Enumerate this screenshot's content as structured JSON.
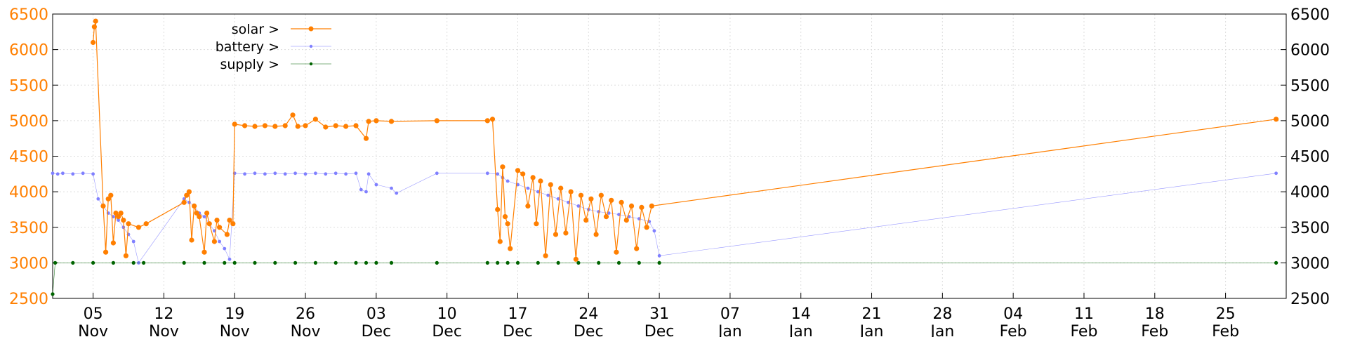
{
  "colors": {
    "solar": "#ff7f00",
    "battery": "#8080ff",
    "supply": "#006400",
    "grid": "#dddddd",
    "left_axis": "#ff7f00"
  },
  "chart_data": {
    "type": "line",
    "title": "",
    "xlabel": "",
    "ylabel": "",
    "ylim": [
      2500,
      6500
    ],
    "xlim": [
      "2023-11-01",
      "2024-03-02"
    ],
    "y_ticks": [
      "2500",
      "3000",
      "3500",
      "4000",
      "4500",
      "5000",
      "5500",
      "6000",
      "6500"
    ],
    "x_ticks": [
      {
        "day": "05",
        "month": "Nov",
        "date": "2023-11-05"
      },
      {
        "day": "12",
        "month": "Nov",
        "date": "2023-11-12"
      },
      {
        "day": "19",
        "month": "Nov",
        "date": "2023-11-19"
      },
      {
        "day": "26",
        "month": "Nov",
        "date": "2023-11-26"
      },
      {
        "day": "03",
        "month": "Dec",
        "date": "2023-12-03"
      },
      {
        "day": "10",
        "month": "Dec",
        "date": "2023-12-10"
      },
      {
        "day": "17",
        "month": "Dec",
        "date": "2023-12-17"
      },
      {
        "day": "24",
        "month": "Dec",
        "date": "2023-12-24"
      },
      {
        "day": "31",
        "month": "Dec",
        "date": "2023-12-31"
      },
      {
        "day": "07",
        "month": "Jan",
        "date": "2024-01-07"
      },
      {
        "day": "14",
        "month": "Jan",
        "date": "2024-01-14"
      },
      {
        "day": "21",
        "month": "Jan",
        "date": "2024-01-21"
      },
      {
        "day": "28",
        "month": "Jan",
        "date": "2024-01-28"
      },
      {
        "day": "04",
        "month": "Feb",
        "date": "2024-02-04"
      },
      {
        "day": "11",
        "month": "Feb",
        "date": "2024-02-11"
      },
      {
        "day": "18",
        "month": "Feb",
        "date": "2024-02-18"
      },
      {
        "day": "25",
        "month": "Feb",
        "date": "2024-02-25"
      }
    ],
    "grid": true,
    "legend_position": "top-left",
    "series": [
      {
        "name": "solar >",
        "color": "#ff7f00",
        "points": [
          [
            "2023-11-05 00:00",
            6100
          ],
          [
            "2023-11-05 03:00",
            6320
          ],
          [
            "2023-11-05 06:00",
            6400
          ],
          [
            "2023-11-06 00:00",
            3800
          ],
          [
            "2023-11-06 06:00",
            3150
          ],
          [
            "2023-11-06 12:00",
            3900
          ],
          [
            "2023-11-06 18:00",
            3950
          ],
          [
            "2023-11-07 00:00",
            3280
          ],
          [
            "2023-11-07 06:00",
            3700
          ],
          [
            "2023-11-07 12:00",
            3650
          ],
          [
            "2023-11-07 18:00",
            3700
          ],
          [
            "2023-11-08 00:00",
            3600
          ],
          [
            "2023-11-08 06:00",
            3100
          ],
          [
            "2023-11-08 12:00",
            3550
          ],
          [
            "2023-11-09 12:00",
            3500
          ],
          [
            "2023-11-10 06:00",
            3550
          ],
          [
            "2023-11-14 00:00",
            3850
          ],
          [
            "2023-11-14 06:00",
            3950
          ],
          [
            "2023-11-14 12:00",
            4000
          ],
          [
            "2023-11-14 18:00",
            3320
          ],
          [
            "2023-11-15 00:00",
            3800
          ],
          [
            "2023-11-15 06:00",
            3700
          ],
          [
            "2023-11-15 12:00",
            3650
          ],
          [
            "2023-11-16 00:00",
            3150
          ],
          [
            "2023-11-16 06:00",
            3700
          ],
          [
            "2023-11-16 12:00",
            3550
          ],
          [
            "2023-11-17 00:00",
            3300
          ],
          [
            "2023-11-17 06:00",
            3600
          ],
          [
            "2023-11-17 12:00",
            3500
          ],
          [
            "2023-11-18 06:00",
            3400
          ],
          [
            "2023-11-18 12:00",
            3600
          ],
          [
            "2023-11-18 20:00",
            3550
          ],
          [
            "2023-11-19 00:00",
            4950
          ],
          [
            "2023-11-20 00:00",
            4930
          ],
          [
            "2023-11-21 00:00",
            4920
          ],
          [
            "2023-11-22 00:00",
            4930
          ],
          [
            "2023-11-23 00:00",
            4920
          ],
          [
            "2023-11-24 00:00",
            4930
          ],
          [
            "2023-11-24 18:00",
            5080
          ],
          [
            "2023-11-25 06:00",
            4920
          ],
          [
            "2023-11-26 00:00",
            4930
          ],
          [
            "2023-11-27 00:00",
            5020
          ],
          [
            "2023-11-28 00:00",
            4910
          ],
          [
            "2023-11-29 00:00",
            4930
          ],
          [
            "2023-11-30 00:00",
            4920
          ],
          [
            "2023-12-01 00:00",
            4930
          ],
          [
            "2023-12-02 00:00",
            4750
          ],
          [
            "2023-12-02 06:00",
            4990
          ],
          [
            "2023-12-03 00:00",
            5000
          ],
          [
            "2023-12-04 12:00",
            4990
          ],
          [
            "2023-12-09 00:00",
            5000
          ],
          [
            "2023-12-14 00:00",
            5000
          ],
          [
            "2023-12-14 12:00",
            5020
          ],
          [
            "2023-12-15 00:00",
            3750
          ],
          [
            "2023-12-15 06:00",
            3300
          ],
          [
            "2023-12-15 12:00",
            4350
          ],
          [
            "2023-12-15 18:00",
            3650
          ],
          [
            "2023-12-16 00:00",
            3550
          ],
          [
            "2023-12-16 06:00",
            3200
          ],
          [
            "2023-12-17 00:00",
            4300
          ],
          [
            "2023-12-17 12:00",
            4250
          ],
          [
            "2023-12-18 00:00",
            3800
          ],
          [
            "2023-12-18 12:00",
            4200
          ],
          [
            "2023-12-18 20:00",
            3550
          ],
          [
            "2023-12-19 06:00",
            4150
          ],
          [
            "2023-12-19 18:00",
            3100
          ],
          [
            "2023-12-20 06:00",
            4100
          ],
          [
            "2023-12-20 18:00",
            3400
          ],
          [
            "2023-12-21 06:00",
            4050
          ],
          [
            "2023-12-21 18:00",
            3420
          ],
          [
            "2023-12-22 06:00",
            4000
          ],
          [
            "2023-12-22 18:00",
            3050
          ],
          [
            "2023-12-23 06:00",
            3950
          ],
          [
            "2023-12-23 18:00",
            3600
          ],
          [
            "2023-12-24 06:00",
            3900
          ],
          [
            "2023-12-24 18:00",
            3400
          ],
          [
            "2023-12-25 06:00",
            3950
          ],
          [
            "2023-12-25 18:00",
            3650
          ],
          [
            "2023-12-26 06:00",
            3880
          ],
          [
            "2023-12-26 18:00",
            3150
          ],
          [
            "2023-12-27 06:00",
            3850
          ],
          [
            "2023-12-27 18:00",
            3600
          ],
          [
            "2023-12-28 06:00",
            3800
          ],
          [
            "2023-12-28 18:00",
            3200
          ],
          [
            "2023-12-29 06:00",
            3780
          ],
          [
            "2023-12-29 18:00",
            3500
          ],
          [
            "2023-12-30 06:00",
            3800
          ],
          [
            "2024-03-01 00:00",
            5020
          ]
        ]
      },
      {
        "name": "battery >",
        "color": "#8080ff",
        "points": [
          [
            "2023-11-01 00:00",
            4260
          ],
          [
            "2023-11-01 12:00",
            4250
          ],
          [
            "2023-11-02 00:00",
            4260
          ],
          [
            "2023-11-03 00:00",
            4250
          ],
          [
            "2023-11-04 00:00",
            4260
          ],
          [
            "2023-11-05 00:00",
            4250
          ],
          [
            "2023-11-05 12:00",
            3900
          ],
          [
            "2023-11-06 00:00",
            3800
          ],
          [
            "2023-11-06 12:00",
            3700
          ],
          [
            "2023-11-07 00:00",
            3650
          ],
          [
            "2023-11-07 12:00",
            3600
          ],
          [
            "2023-11-08 00:00",
            3500
          ],
          [
            "2023-11-08 12:00",
            3400
          ],
          [
            "2023-11-09 00:00",
            3300
          ],
          [
            "2023-11-09 12:00",
            3000
          ],
          [
            "2023-11-14 00:00",
            3900
          ],
          [
            "2023-11-14 12:00",
            3850
          ],
          [
            "2023-11-15 00:00",
            3800
          ],
          [
            "2023-11-15 12:00",
            3700
          ],
          [
            "2023-11-16 00:00",
            3650
          ],
          [
            "2023-11-16 12:00",
            3550
          ],
          [
            "2023-11-17 00:00",
            3450
          ],
          [
            "2023-11-17 12:00",
            3300
          ],
          [
            "2023-11-18 00:00",
            3200
          ],
          [
            "2023-11-18 12:00",
            3050
          ],
          [
            "2023-11-19 00:00",
            4260
          ],
          [
            "2023-11-20 00:00",
            4250
          ],
          [
            "2023-11-21 00:00",
            4260
          ],
          [
            "2023-11-22 00:00",
            4250
          ],
          [
            "2023-11-23 00:00",
            4260
          ],
          [
            "2023-11-24 00:00",
            4250
          ],
          [
            "2023-11-25 00:00",
            4260
          ],
          [
            "2023-11-26 00:00",
            4250
          ],
          [
            "2023-11-27 00:00",
            4260
          ],
          [
            "2023-11-28 00:00",
            4250
          ],
          [
            "2023-11-29 00:00",
            4260
          ],
          [
            "2023-11-30 00:00",
            4250
          ],
          [
            "2023-12-01 00:00",
            4260
          ],
          [
            "2023-12-01 12:00",
            4030
          ],
          [
            "2023-12-02 00:00",
            4000
          ],
          [
            "2023-12-02 06:00",
            4250
          ],
          [
            "2023-12-03 00:00",
            4100
          ],
          [
            "2023-12-04 12:00",
            4050
          ],
          [
            "2023-12-05 00:00",
            3980
          ],
          [
            "2023-12-09 00:00",
            4260
          ],
          [
            "2023-12-14 00:00",
            4260
          ],
          [
            "2023-12-15 00:00",
            4250
          ],
          [
            "2023-12-15 12:00",
            4200
          ],
          [
            "2023-12-16 00:00",
            4150
          ],
          [
            "2023-12-17 00:00",
            4100
          ],
          [
            "2023-12-18 00:00",
            4050
          ],
          [
            "2023-12-19 00:00",
            4000
          ],
          [
            "2023-12-20 00:00",
            3950
          ],
          [
            "2023-12-21 00:00",
            3900
          ],
          [
            "2023-12-22 00:00",
            3850
          ],
          [
            "2023-12-23 00:00",
            3800
          ],
          [
            "2023-12-24 00:00",
            3750
          ],
          [
            "2023-12-25 00:00",
            3720
          ],
          [
            "2023-12-26 00:00",
            3700
          ],
          [
            "2023-12-27 00:00",
            3680
          ],
          [
            "2023-12-28 00:00",
            3650
          ],
          [
            "2023-12-29 00:00",
            3620
          ],
          [
            "2023-12-30 00:00",
            3580
          ],
          [
            "2023-12-30 12:00",
            3450
          ],
          [
            "2023-12-31 00:00",
            3100
          ],
          [
            "2024-03-01 00:00",
            4260
          ]
        ]
      },
      {
        "name": "supply >",
        "color": "#006400",
        "points": [
          [
            "2023-11-01 00:00",
            2560
          ],
          [
            "2023-11-01 06:00",
            3000
          ],
          [
            "2023-11-03 00:00",
            3000
          ],
          [
            "2023-11-05 00:00",
            3000
          ],
          [
            "2023-11-07 00:00",
            3000
          ],
          [
            "2023-11-09 00:00",
            3000
          ],
          [
            "2023-11-10 00:00",
            3000
          ],
          [
            "2023-11-14 00:00",
            3000
          ],
          [
            "2023-11-16 00:00",
            3000
          ],
          [
            "2023-11-18 00:00",
            3000
          ],
          [
            "2023-11-19 00:00",
            3000
          ],
          [
            "2023-11-21 00:00",
            3000
          ],
          [
            "2023-11-23 00:00",
            3000
          ],
          [
            "2023-11-25 00:00",
            3000
          ],
          [
            "2023-11-27 00:00",
            3000
          ],
          [
            "2023-11-29 00:00",
            3000
          ],
          [
            "2023-12-01 00:00",
            3000
          ],
          [
            "2023-12-02 00:00",
            3000
          ],
          [
            "2023-12-03 00:00",
            3000
          ],
          [
            "2023-12-04 12:00",
            3000
          ],
          [
            "2023-12-09 00:00",
            3000
          ],
          [
            "2023-12-14 00:00",
            3000
          ],
          [
            "2023-12-15 00:00",
            3000
          ],
          [
            "2023-12-16 00:00",
            3000
          ],
          [
            "2023-12-17 00:00",
            3000
          ],
          [
            "2023-12-19 00:00",
            3000
          ],
          [
            "2023-12-21 00:00",
            3000
          ],
          [
            "2023-12-23 00:00",
            3000
          ],
          [
            "2023-12-25 00:00",
            3000
          ],
          [
            "2023-12-27 00:00",
            3000
          ],
          [
            "2023-12-29 00:00",
            3000
          ],
          [
            "2023-12-31 00:00",
            3000
          ],
          [
            "2024-03-01 00:00",
            3000
          ]
        ]
      }
    ]
  }
}
